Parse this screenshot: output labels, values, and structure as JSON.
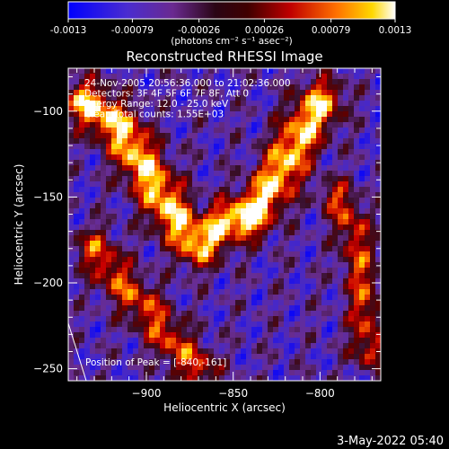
{
  "colorbar": {
    "ticks": [
      "-0.0013",
      "-0.00079",
      "-0.00026",
      "0.00026",
      "0.00079",
      "0.0013"
    ],
    "units": "(photons cm⁻² s⁻¹ asec⁻²)",
    "range": [
      -0.0013,
      0.0013
    ],
    "colors": [
      "#0000ff",
      "#5a2cc8",
      "#6a2a90",
      "#3a0a1a",
      "#b00000",
      "#ff6a00",
      "#ffd000",
      "#ffffff"
    ]
  },
  "chart_data": {
    "type": "heatmap",
    "title": "Reconstructed RHESSI Image",
    "xlabel": "Heliocentric X (arcsec)",
    "ylabel": "Heliocentric Y (arcsec)",
    "xlim": [
      -945,
      -765
    ],
    "ylim": [
      -257,
      -75
    ],
    "xticks": [
      -900,
      -850,
      -800
    ],
    "yticks": [
      -100,
      -150,
      -200,
      -250
    ],
    "info_lines": [
      "24-Nov-2005 20:56:36.000 to 21:02:36.000",
      "Detectors: 3F 4F 5F 6F 7F 8F, Att 0",
      "Energy Range: 12.0 - 25.0 keV",
      "Clean    Total counts: 1.55E+03"
    ],
    "peak_label": "Position of Peak = [-840,-161]",
    "peak": [
      -840,
      -161
    ],
    "ridge": [
      [
        -935,
        -95
      ],
      [
        -915,
        -110
      ],
      [
        -900,
        -135
      ],
      [
        -885,
        -160
      ],
      [
        -870,
        -178
      ],
      [
        -855,
        -165
      ],
      [
        -840,
        -161
      ],
      [
        -825,
        -140
      ],
      [
        -812,
        -115
      ],
      [
        -800,
        -95
      ]
    ],
    "ridge2": [
      [
        -930,
        -180
      ],
      [
        -915,
        -200
      ],
      [
        -900,
        -215
      ],
      [
        -885,
        -235
      ],
      [
        -870,
        -250
      ]
    ],
    "ridge3": [
      [
        -790,
        -150
      ],
      [
        -780,
        -170
      ],
      [
        -775,
        -205
      ],
      [
        -772,
        -240
      ]
    ]
  },
  "footer": {
    "timestamp": "3-May-2022 05:40"
  }
}
